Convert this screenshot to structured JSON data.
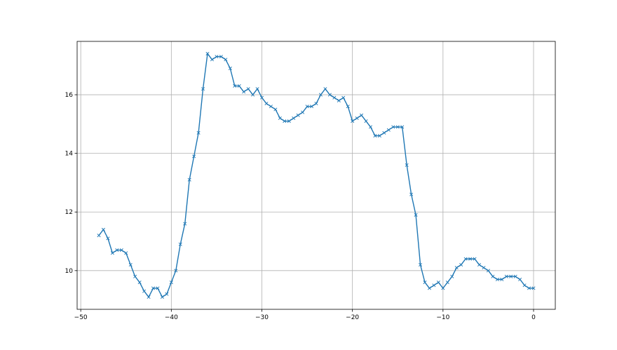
{
  "chart_data": {
    "type": "line",
    "title": "",
    "xlabel": "",
    "ylabel": "",
    "xlim": [
      -50.4,
      2.4
    ],
    "ylim": [
      8.68,
      17.82
    ],
    "grid": true,
    "marker": "x",
    "color": "#1f77b4",
    "x_ticks": [
      -50,
      -40,
      -30,
      -20,
      -10,
      0
    ],
    "y_ticks": [
      10,
      12,
      14,
      16
    ],
    "x_tick_labels": [
      "−50",
      "−40",
      "−30",
      "−20",
      "−10",
      "0"
    ],
    "y_tick_labels": [
      "10",
      "12",
      "14",
      "16"
    ],
    "x": [
      -48,
      -47.5,
      -47,
      -46.5,
      -46,
      -45.5,
      -45,
      -44.5,
      -44,
      -43.5,
      -43,
      -42.5,
      -42,
      -41.5,
      -41,
      -40.5,
      -40,
      -39.5,
      -39,
      -38.5,
      -38,
      -37.5,
      -37,
      -36.5,
      -36,
      -35.5,
      -35,
      -34.5,
      -34,
      -33.5,
      -33,
      -32.5,
      -32,
      -31.5,
      -31,
      -30.5,
      -30,
      -29.5,
      -29,
      -28.5,
      -28,
      -27.5,
      -27,
      -26.5,
      -26,
      -25.5,
      -25,
      -24.5,
      -24,
      -23.5,
      -23,
      -22.5,
      -22,
      -21.5,
      -21,
      -20.5,
      -20,
      -19.5,
      -19,
      -18.5,
      -18,
      -17.5,
      -17,
      -16.5,
      -16,
      -15.5,
      -15,
      -14.5,
      -14,
      -13.5,
      -13,
      -12.5,
      -12,
      -11.5,
      -11,
      -10.5,
      -10,
      -9.5,
      -9,
      -8.5,
      -8,
      -7.5,
      -7,
      -6.5,
      -6,
      -5.5,
      -5,
      -4.5,
      -4,
      -3.5,
      -3,
      -2.5,
      -2,
      -1.5,
      -1,
      -0.5,
      0
    ],
    "y": [
      11.2,
      11.4,
      11.1,
      10.6,
      10.7,
      10.7,
      10.6,
      10.2,
      9.8,
      9.6,
      9.3,
      9.1,
      9.4,
      9.4,
      9.1,
      9.2,
      9.6,
      10.0,
      10.9,
      11.6,
      13.1,
      13.9,
      14.7,
      16.2,
      17.4,
      17.2,
      17.3,
      17.3,
      17.2,
      16.9,
      16.3,
      16.3,
      16.1,
      16.2,
      16.0,
      16.2,
      15.9,
      15.7,
      15.6,
      15.5,
      15.2,
      15.1,
      15.1,
      15.2,
      15.3,
      15.4,
      15.6,
      15.6,
      15.7,
      16.0,
      16.2,
      16.0,
      15.9,
      15.8,
      15.9,
      15.6,
      15.1,
      15.2,
      15.3,
      15.1,
      14.9,
      14.6,
      14.6,
      14.7,
      14.8,
      14.9,
      14.9,
      14.9,
      13.6,
      12.6,
      11.9,
      10.2,
      9.6,
      9.4,
      9.5,
      9.6,
      9.4,
      9.6,
      9.8,
      10.1,
      10.2,
      10.4,
      10.4,
      10.4,
      10.2,
      10.1,
      10.0,
      9.8,
      9.7,
      9.7,
      9.8,
      9.8,
      9.8,
      9.7,
      9.5,
      9.4,
      9.4
    ]
  }
}
